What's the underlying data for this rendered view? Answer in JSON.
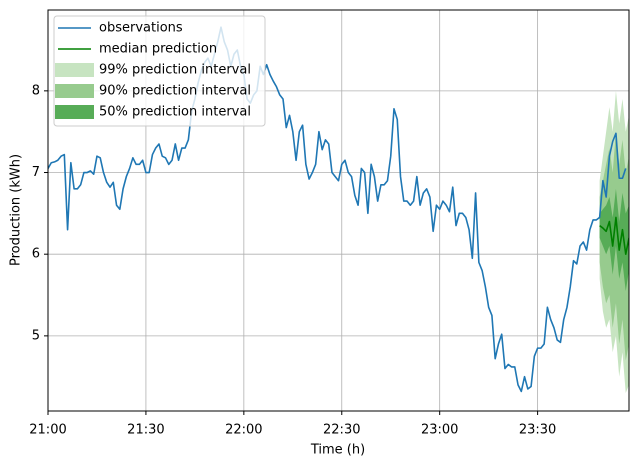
{
  "chart_data": {
    "type": "line",
    "xlabel": "Time (h)",
    "ylabel": "Production (kWh)",
    "xlim": [
      "21:00",
      "23:58"
    ],
    "xticks": [
      "21:00",
      "21:30",
      "22:00",
      "22:30",
      "23:00",
      "23:30"
    ],
    "ylim": [
      4.08,
      8.99
    ],
    "yticks": [
      5,
      6,
      7,
      8
    ],
    "grid": true,
    "legend": "upper left",
    "series": [
      {
        "name": "observations",
        "kind": "line",
        "color": "#1f77b4",
        "x": [
          "21:00",
          "21:01",
          "21:02",
          "21:03",
          "21:04",
          "21:05",
          "21:06",
          "21:07",
          "21:08",
          "21:09",
          "21:10",
          "21:11",
          "21:12",
          "21:13",
          "21:14",
          "21:15",
          "21:16",
          "21:17",
          "21:18",
          "21:19",
          "21:20",
          "21:21",
          "21:22",
          "21:23",
          "21:24",
          "21:25",
          "21:26",
          "21:27",
          "21:28",
          "21:29",
          "21:30",
          "21:31",
          "21:32",
          "21:33",
          "21:34",
          "21:35",
          "21:36",
          "21:37",
          "21:38",
          "21:39",
          "21:40",
          "21:41",
          "21:42",
          "21:43",
          "21:44",
          "21:45",
          "21:46",
          "21:47",
          "21:48",
          "21:49",
          "21:50",
          "21:51",
          "21:52",
          "21:53",
          "21:54",
          "21:55",
          "21:56",
          "21:57",
          "21:58",
          "21:59",
          "22:00",
          "22:01",
          "22:02",
          "22:03",
          "22:04",
          "22:05",
          "22:06",
          "22:07",
          "22:08",
          "22:09",
          "22:10",
          "22:11",
          "22:12",
          "22:13",
          "22:14",
          "22:15",
          "22:16",
          "22:17",
          "22:18",
          "22:19",
          "22:20",
          "22:21",
          "22:22",
          "22:23",
          "22:24",
          "22:25",
          "22:26",
          "22:27",
          "22:28",
          "22:29",
          "22:30",
          "22:31",
          "22:32",
          "22:33",
          "22:34",
          "22:35",
          "22:36",
          "22:37",
          "22:38",
          "22:39",
          "22:40",
          "22:41",
          "22:42",
          "22:43",
          "22:44",
          "22:45",
          "22:46",
          "22:47",
          "22:48",
          "22:49",
          "22:50",
          "22:51",
          "22:52",
          "22:53",
          "22:54",
          "22:55",
          "22:56",
          "22:57",
          "22:58",
          "22:59",
          "23:00",
          "23:01",
          "23:02",
          "23:03",
          "23:04",
          "23:05",
          "23:06",
          "23:07",
          "23:08",
          "23:09",
          "23:10",
          "23:11",
          "23:12",
          "23:13",
          "23:14",
          "23:15",
          "23:16",
          "23:17",
          "23:18",
          "23:19",
          "23:20",
          "23:21",
          "23:22",
          "23:23",
          "23:24",
          "23:25",
          "23:26",
          "23:27",
          "23:28",
          "23:29",
          "23:30",
          "23:31",
          "23:32",
          "23:33",
          "23:34",
          "23:35",
          "23:36",
          "23:37",
          "23:38",
          "23:39",
          "23:40",
          "23:41",
          "23:42",
          "23:43",
          "23:44",
          "23:45",
          "23:46",
          "23:47",
          "23:48",
          "23:49",
          "23:50",
          "23:51",
          "23:52",
          "23:53",
          "23:54",
          "23:55",
          "23:56",
          "23:57"
        ],
        "values": [
          7.05,
          7.12,
          7.13,
          7.15,
          7.2,
          7.22,
          6.3,
          7.12,
          6.8,
          6.8,
          6.85,
          7.0,
          7.0,
          7.02,
          6.98,
          7.2,
          7.18,
          7.0,
          6.88,
          6.82,
          6.88,
          6.6,
          6.55,
          6.8,
          6.95,
          7.05,
          7.18,
          7.1,
          7.1,
          7.15,
          7.0,
          7.0,
          7.22,
          7.3,
          7.35,
          7.2,
          7.18,
          7.1,
          7.15,
          7.35,
          7.15,
          7.3,
          7.3,
          7.4,
          7.75,
          7.9,
          8.1,
          8.25,
          8.35,
          8.4,
          8.3,
          8.45,
          8.6,
          8.78,
          8.6,
          8.5,
          8.3,
          8.45,
          8.5,
          8.3,
          8.2,
          7.9,
          7.85,
          7.95,
          8.0,
          8.3,
          8.2,
          8.32,
          8.2,
          8.12,
          8.05,
          7.95,
          7.9,
          7.55,
          7.7,
          7.5,
          7.15,
          7.5,
          7.58,
          7.1,
          6.92,
          7.0,
          7.1,
          7.5,
          7.28,
          7.4,
          7.35,
          7.0,
          6.95,
          6.9,
          7.1,
          7.15,
          7.0,
          6.95,
          6.72,
          6.6,
          7.05,
          7.0,
          6.5,
          7.1,
          6.95,
          6.65,
          6.85,
          6.85,
          6.9,
          7.2,
          7.78,
          7.65,
          6.95,
          6.65,
          6.65,
          6.6,
          6.65,
          6.95,
          6.6,
          6.75,
          6.8,
          6.7,
          6.28,
          6.6,
          6.55,
          6.65,
          6.6,
          6.52,
          6.82,
          6.35,
          6.5,
          6.5,
          6.45,
          6.3,
          5.95,
          6.75,
          5.9,
          5.8,
          5.6,
          5.35,
          5.25,
          4.72,
          4.9,
          5.02,
          4.6,
          4.65,
          4.62,
          4.62,
          4.4,
          4.32,
          4.5,
          4.35,
          4.38,
          4.75,
          4.85,
          4.85,
          4.9,
          5.35,
          5.2,
          5.1,
          4.95,
          4.92,
          5.2,
          5.35,
          5.6,
          5.92,
          5.88,
          6.1,
          6.15,
          6.05,
          6.3,
          6.42,
          6.42,
          6.45,
          6.9,
          6.7,
          7.2,
          7.38,
          7.48,
          6.93,
          6.93,
          7.05
        ]
      },
      {
        "name": "median prediction",
        "kind": "line",
        "color": "#008000",
        "x": [
          "23:49",
          "23:50",
          "23:51",
          "23:52",
          "23:53",
          "23:54",
          "23:55",
          "23:56",
          "23:57",
          "23:58"
        ],
        "values": [
          6.35,
          6.32,
          6.28,
          6.4,
          6.1,
          6.45,
          6.05,
          6.3,
          6.0,
          6.2
        ]
      },
      {
        "name": "99% prediction interval",
        "kind": "band",
        "color": "#c7e4c1",
        "x": [
          "23:49",
          "23:50",
          "23:51",
          "23:52",
          "23:53",
          "23:54",
          "23:55",
          "23:56",
          "23:57",
          "23:58"
        ],
        "lower": [
          5.7,
          5.3,
          5.1,
          5.2,
          4.8,
          5.0,
          4.5,
          4.8,
          4.3,
          4.4
        ],
        "upper": [
          6.9,
          7.2,
          7.5,
          7.8,
          7.5,
          8.0,
          7.6,
          7.9,
          7.5,
          7.7
        ]
      },
      {
        "name": "90% prediction interval",
        "kind": "band",
        "color": "#97cb8e",
        "x": [
          "23:49",
          "23:50",
          "23:51",
          "23:52",
          "23:53",
          "23:54",
          "23:55",
          "23:56",
          "23:57",
          "23:58"
        ],
        "lower": [
          5.9,
          5.6,
          5.4,
          5.5,
          5.1,
          5.4,
          4.9,
          5.2,
          4.7,
          4.9
        ],
        "upper": [
          6.7,
          6.9,
          7.1,
          7.3,
          7.0,
          7.5,
          7.1,
          7.4,
          7.0,
          7.2
        ]
      },
      {
        "name": "50% prediction interval",
        "kind": "band",
        "color": "#57ac57",
        "x": [
          "23:49",
          "23:50",
          "23:51",
          "23:52",
          "23:53",
          "23:54",
          "23:55",
          "23:56",
          "23:57",
          "23:58"
        ],
        "lower": [
          6.2,
          6.1,
          6.0,
          6.1,
          5.75,
          6.1,
          5.7,
          5.9,
          5.55,
          5.8
        ],
        "upper": [
          6.5,
          6.55,
          6.6,
          6.7,
          6.45,
          6.8,
          6.4,
          6.75,
          6.5,
          6.6
        ]
      }
    ]
  }
}
